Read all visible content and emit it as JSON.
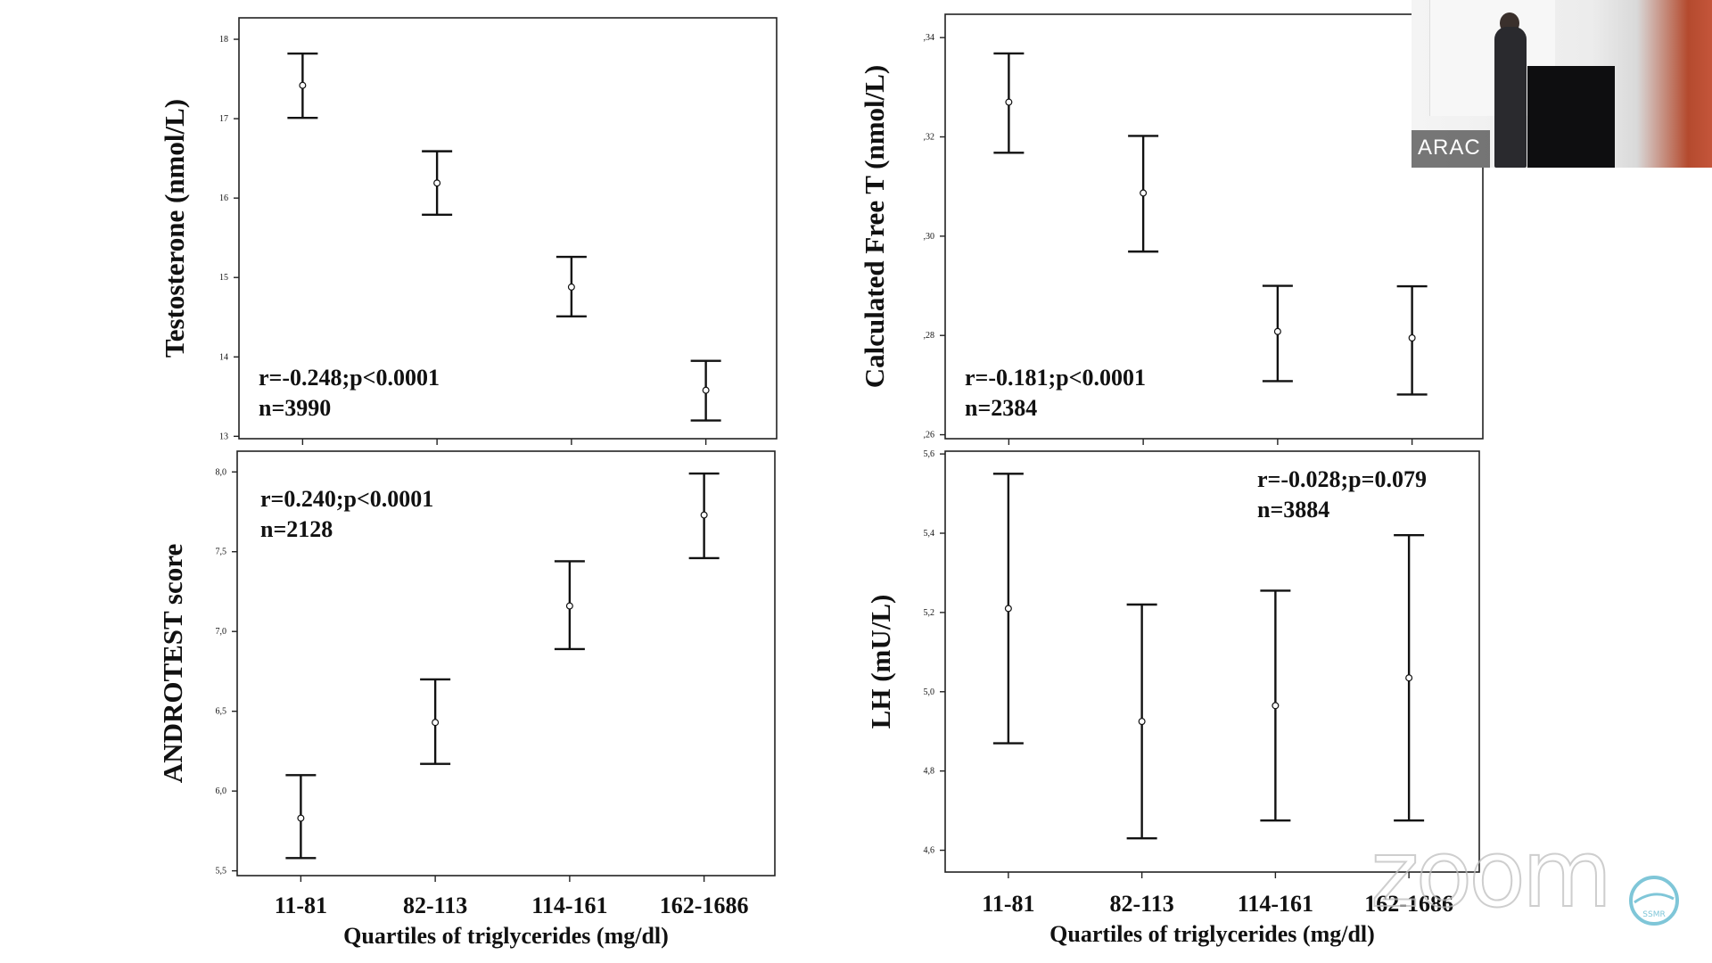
{
  "overlay": {
    "speaker_name": "ARAC",
    "watermark": "zoom",
    "logo_text": "SSMR",
    "icons": [
      "speaker-video-tile",
      "zoom-watermark",
      "society-logo"
    ]
  },
  "chart_data": [
    {
      "type": "errorbar",
      "ylabel": "Testosterone (nmol/L)",
      "xlabel": "",
      "categories": [
        "",
        "",
        "",
        ""
      ],
      "y_ticks": [
        "13",
        "14",
        "15",
        "16",
        "17",
        "18"
      ],
      "ylim": [
        12.97,
        18.27
      ],
      "series": [
        {
          "values": [
            17.42,
            16.19,
            14.88,
            13.58
          ],
          "lower": [
            17.01,
            15.79,
            14.51,
            13.2
          ],
          "upper": [
            17.82,
            16.59,
            15.26,
            13.95
          ]
        }
      ],
      "annotations": [
        "r=-0.248;p<0.0001",
        "n=3990"
      ],
      "annotation_position": "bottom-left",
      "grid": false
    },
    {
      "type": "errorbar",
      "ylabel": "Calculated Free T (nmol/L)",
      "xlabel": "",
      "categories": [
        "",
        "",
        "",
        ""
      ],
      "y_ticks": [
        ",26",
        ",28",
        ",30",
        ",32",
        ",34"
      ],
      "y_tick_values": [
        0.26,
        0.28,
        0.3,
        0.32,
        0.34
      ],
      "ylim": [
        0.2592,
        0.3447
      ],
      "series": [
        {
          "values": [
            0.327,
            0.3087,
            0.2808,
            0.2795
          ],
          "lower": [
            0.3168,
            0.2969,
            0.2708,
            0.2681
          ],
          "upper": [
            0.3368,
            0.3202,
            0.29,
            0.2899
          ]
        }
      ],
      "annotations": [
        "r=-0.181;p<0.0001",
        "n=2384"
      ],
      "annotation_position": "bottom-left",
      "grid": false
    },
    {
      "type": "errorbar",
      "ylabel": "ANDROTEST score",
      "xlabel": "Quartiles of triglycerides (mg/dl)",
      "categories": [
        "11-81",
        "82-113",
        "114-161",
        "162-1686"
      ],
      "y_ticks": [
        "5,5",
        "6,0",
        "6,5",
        "7,0",
        "7,5",
        "8,0"
      ],
      "y_tick_values": [
        5.5,
        6.0,
        6.5,
        7.0,
        7.5,
        8.0
      ],
      "ylim": [
        5.47,
        8.13
      ],
      "series": [
        {
          "values": [
            5.83,
            6.43,
            7.16,
            7.73
          ],
          "lower": [
            5.58,
            6.17,
            6.89,
            7.46
          ],
          "upper": [
            6.1,
            6.7,
            7.44,
            7.99
          ]
        }
      ],
      "annotations": [
        "r=0.240;p<0.0001",
        "n=2128"
      ],
      "annotation_position": "top-left",
      "grid": false
    },
    {
      "type": "errorbar",
      "ylabel": "LH (mU/L)",
      "xlabel": "Quartiles of triglycerides (mg/dl)",
      "categories": [
        "11-81",
        "82-113",
        "114-161",
        "162-1686"
      ],
      "y_ticks": [
        "4,6",
        "4,8",
        "5,0",
        "5,2",
        "5,4",
        "5,6"
      ],
      "y_tick_values": [
        4.6,
        4.8,
        5.0,
        5.2,
        5.4,
        5.6
      ],
      "ylim": [
        4.545,
        5.607
      ],
      "series": [
        {
          "values": [
            5.21,
            4.925,
            4.965,
            5.035
          ],
          "lower": [
            4.87,
            4.63,
            4.675,
            4.675
          ],
          "upper": [
            5.55,
            5.22,
            5.255,
            5.395
          ]
        }
      ],
      "annotations": [
        "r=-0.028;p=0.079",
        "n=3884"
      ],
      "annotation_position": "top-right",
      "grid": false
    }
  ]
}
